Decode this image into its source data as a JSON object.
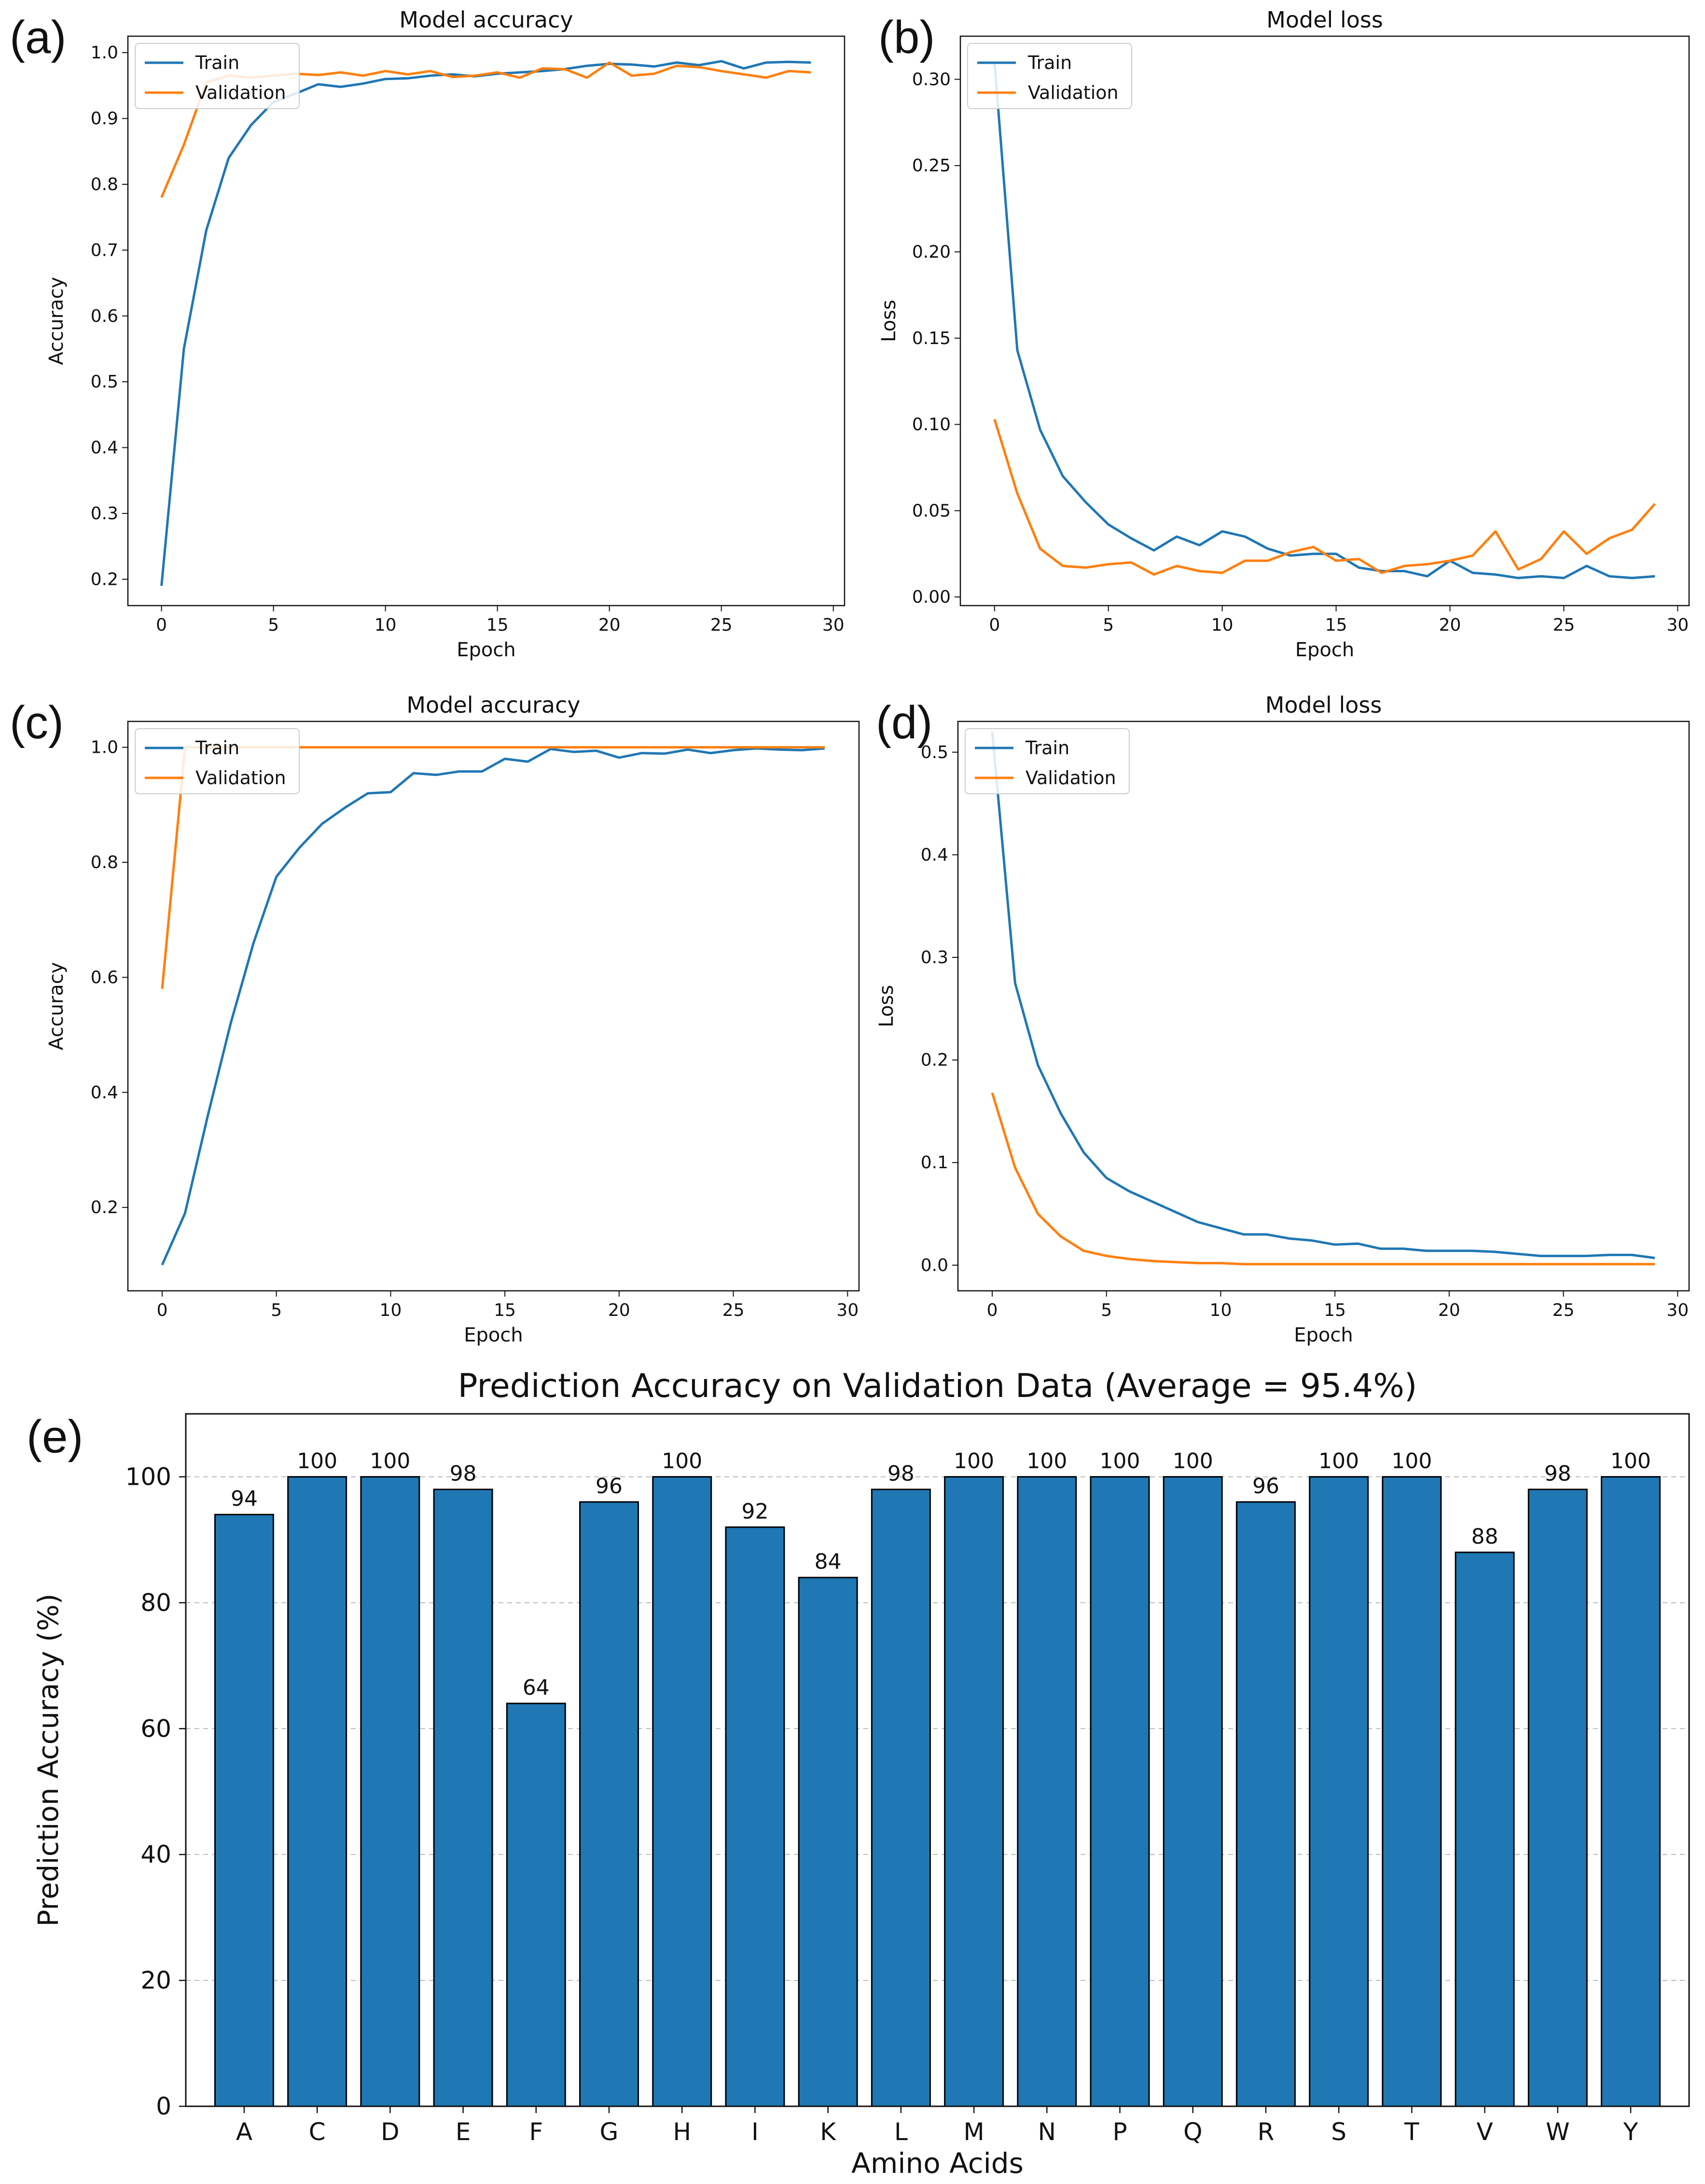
{
  "colors": {
    "train": "#1f77b4",
    "validation": "#ff7f0e",
    "bar": "#1f77b4",
    "bar_edge": "#000000",
    "grid": "#bbbbbb"
  },
  "chart_data": [
    {
      "panel": "(a)",
      "type": "line",
      "title": "Model accuracy",
      "xlabel": "Epoch",
      "ylabel": "Accuracy",
      "xlim": [
        -1.5,
        30.5
      ],
      "ylim": [
        0.16,
        1.025
      ],
      "xticks": [
        0,
        5,
        10,
        15,
        20,
        25,
        30
      ],
      "yticks": [
        0.2,
        0.3,
        0.4,
        0.5,
        0.6,
        0.7,
        0.8,
        0.9,
        1.0
      ],
      "ytick_decimals": 1,
      "legend": "top-left",
      "x": [
        0,
        1,
        2,
        3,
        4,
        5,
        6,
        7,
        8,
        9,
        10,
        11,
        12,
        13,
        14,
        15,
        16,
        17,
        18,
        19,
        20,
        21,
        22,
        23,
        24,
        25,
        26,
        27,
        28,
        29
      ],
      "series": [
        {
          "name": "Train",
          "color_key": "train",
          "values": [
            0.19,
            0.55,
            0.73,
            0.84,
            0.89,
            0.925,
            0.938,
            0.952,
            0.948,
            0.953,
            0.96,
            0.961,
            0.965,
            0.967,
            0.964,
            0.968,
            0.97,
            0.972,
            0.975,
            0.98,
            0.983,
            0.982,
            0.979,
            0.985,
            0.981,
            0.987,
            0.976,
            0.985,
            0.986,
            0.985
          ]
        },
        {
          "name": "Validation",
          "color_key": "validation",
          "values": [
            0.78,
            0.86,
            0.955,
            0.965,
            0.962,
            0.965,
            0.968,
            0.966,
            0.97,
            0.965,
            0.972,
            0.967,
            0.972,
            0.963,
            0.965,
            0.97,
            0.962,
            0.976,
            0.975,
            0.962,
            0.985,
            0.965,
            0.968,
            0.98,
            0.978,
            0.972,
            0.967,
            0.962,
            0.972,
            0.97
          ]
        }
      ]
    },
    {
      "panel": "(b)",
      "type": "line",
      "title": "Model loss",
      "xlabel": "Epoch",
      "ylabel": "Loss",
      "xlim": [
        -1.5,
        30.5
      ],
      "ylim": [
        -0.005,
        0.325
      ],
      "xticks": [
        0,
        5,
        10,
        15,
        20,
        25,
        30
      ],
      "yticks": [
        0.0,
        0.05,
        0.1,
        0.15,
        0.2,
        0.25,
        0.3
      ],
      "ytick_decimals": 2,
      "legend": "top-left",
      "x": [
        0,
        1,
        2,
        3,
        4,
        5,
        6,
        7,
        8,
        9,
        10,
        11,
        12,
        13,
        14,
        15,
        16,
        17,
        18,
        19,
        20,
        21,
        22,
        23,
        24,
        25,
        26,
        27,
        28,
        29
      ],
      "series": [
        {
          "name": "Train",
          "color_key": "train",
          "values": [
            0.31,
            0.143,
            0.097,
            0.07,
            0.055,
            0.042,
            0.034,
            0.027,
            0.035,
            0.03,
            0.038,
            0.035,
            0.028,
            0.024,
            0.025,
            0.025,
            0.017,
            0.015,
            0.015,
            0.012,
            0.021,
            0.014,
            0.013,
            0.011,
            0.012,
            0.011,
            0.018,
            0.012,
            0.011,
            0.012
          ]
        },
        {
          "name": "Validation",
          "color_key": "validation",
          "values": [
            0.103,
            0.06,
            0.028,
            0.018,
            0.017,
            0.019,
            0.02,
            0.013,
            0.018,
            0.015,
            0.014,
            0.021,
            0.021,
            0.026,
            0.029,
            0.021,
            0.022,
            0.014,
            0.018,
            0.019,
            0.021,
            0.024,
            0.038,
            0.016,
            0.022,
            0.038,
            0.025,
            0.034,
            0.039,
            0.054
          ]
        }
      ]
    },
    {
      "panel": "(c)",
      "type": "line",
      "title": "Model accuracy",
      "xlabel": "Epoch",
      "ylabel": "Accuracy",
      "xlim": [
        -1.5,
        30.5
      ],
      "ylim": [
        0.055,
        1.045
      ],
      "xticks": [
        0,
        5,
        10,
        15,
        20,
        25,
        30
      ],
      "yticks": [
        0.2,
        0.4,
        0.6,
        0.8,
        1.0
      ],
      "ytick_decimals": 1,
      "legend": "top-left",
      "x": [
        0,
        1,
        2,
        3,
        4,
        5,
        6,
        7,
        8,
        9,
        10,
        11,
        12,
        13,
        14,
        15,
        16,
        17,
        18,
        19,
        20,
        21,
        22,
        23,
        24,
        25,
        26,
        27,
        28,
        29
      ],
      "series": [
        {
          "name": "Train",
          "color_key": "train",
          "values": [
            0.1,
            0.19,
            0.36,
            0.52,
            0.66,
            0.775,
            0.825,
            0.867,
            0.895,
            0.92,
            0.922,
            0.955,
            0.952,
            0.958,
            0.958,
            0.98,
            0.975,
            0.997,
            0.992,
            0.994,
            0.982,
            0.99,
            0.989,
            0.996,
            0.99,
            0.995,
            0.998,
            0.996,
            0.995,
            0.998
          ]
        },
        {
          "name": "Validation",
          "color_key": "validation",
          "values": [
            0.58,
            1.0,
            1.0,
            1.0,
            1.0,
            1.0,
            1.0,
            1.0,
            1.0,
            1.0,
            1.0,
            1.0,
            1.0,
            1.0,
            1.0,
            1.0,
            1.0,
            1.0,
            1.0,
            1.0,
            1.0,
            1.0,
            1.0,
            1.0,
            1.0,
            1.0,
            1.0,
            1.0,
            1.0,
            1.0
          ]
        }
      ]
    },
    {
      "panel": "(d)",
      "type": "line",
      "title": "Model loss",
      "xlabel": "Epoch",
      "ylabel": "Loss",
      "xlim": [
        -1.5,
        30.5
      ],
      "ylim": [
        -0.025,
        0.53
      ],
      "xticks": [
        0,
        5,
        10,
        15,
        20,
        25,
        30
      ],
      "yticks": [
        0.0,
        0.1,
        0.2,
        0.3,
        0.4,
        0.5
      ],
      "ytick_decimals": 1,
      "legend": "top-left",
      "x": [
        0,
        1,
        2,
        3,
        4,
        5,
        6,
        7,
        8,
        9,
        10,
        11,
        12,
        13,
        14,
        15,
        16,
        17,
        18,
        19,
        20,
        21,
        22,
        23,
        24,
        25,
        26,
        27,
        28,
        29
      ],
      "series": [
        {
          "name": "Train",
          "color_key": "train",
          "values": [
            0.52,
            0.275,
            0.195,
            0.148,
            0.11,
            0.085,
            0.072,
            0.062,
            0.052,
            0.042,
            0.036,
            0.03,
            0.03,
            0.026,
            0.024,
            0.02,
            0.021,
            0.016,
            0.016,
            0.014,
            0.014,
            0.014,
            0.013,
            0.011,
            0.009,
            0.009,
            0.009,
            0.01,
            0.01,
            0.007
          ]
        },
        {
          "name": "Validation",
          "color_key": "validation",
          "values": [
            0.168,
            0.095,
            0.05,
            0.028,
            0.014,
            0.009,
            0.006,
            0.004,
            0.003,
            0.002,
            0.002,
            0.001,
            0.001,
            0.001,
            0.001,
            0.001,
            0.001,
            0.001,
            0.001,
            0.001,
            0.001,
            0.001,
            0.001,
            0.001,
            0.001,
            0.001,
            0.001,
            0.001,
            0.001,
            0.001
          ]
        }
      ]
    },
    {
      "panel": "(e)",
      "type": "bar",
      "title": "Prediction Accuracy on Validation Data (Average = 95.4%)",
      "xlabel": "Amino Acids",
      "ylabel": "Prediction Accuracy (%)",
      "ylim": [
        0,
        110
      ],
      "yticks": [
        0,
        20,
        40,
        60,
        80,
        100
      ],
      "grid": true,
      "categories": [
        "A",
        "C",
        "D",
        "E",
        "F",
        "G",
        "H",
        "I",
        "K",
        "L",
        "M",
        "N",
        "P",
        "Q",
        "R",
        "S",
        "T",
        "V",
        "W",
        "Y"
      ],
      "values": [
        94,
        100,
        100,
        98,
        64,
        96,
        100,
        92,
        84,
        98,
        100,
        100,
        100,
        100,
        96,
        100,
        100,
        88,
        98,
        100
      ]
    }
  ]
}
